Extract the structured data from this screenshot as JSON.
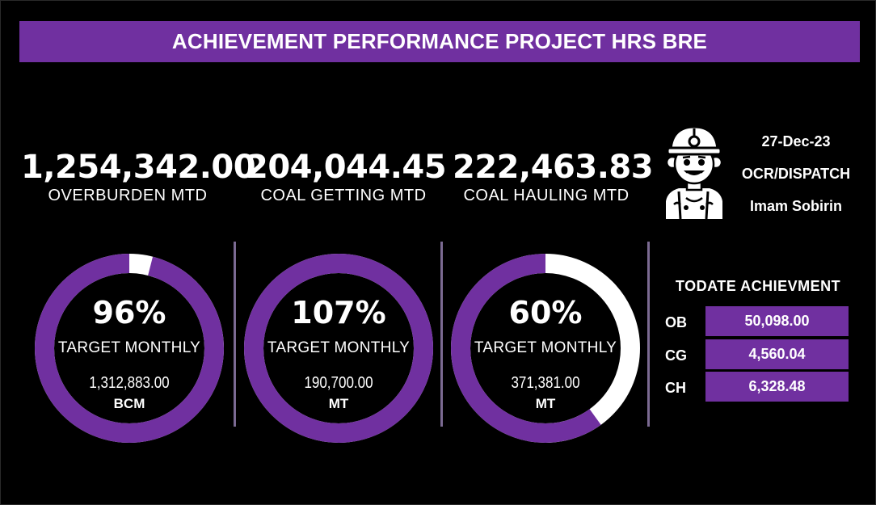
{
  "title": "ACHIEVEMENT PERFORMANCE PROJECT HRS BRE",
  "kpis": [
    {
      "value": "1,254,342.00",
      "label": "OVERBURDEN MTD"
    },
    {
      "value": "204,044.45",
      "label": "COAL GETTING MTD"
    },
    {
      "value": "222,463.83",
      "label": "COAL HAULING MTD"
    }
  ],
  "gauges": [
    {
      "percent_text": "96%",
      "fraction": 0.96,
      "sub_label": "TARGET MONTHLY",
      "target": "1,312,883.00",
      "unit": "BCM"
    },
    {
      "percent_text": "107%",
      "fraction": 1.0,
      "sub_label": "TARGET MONTHLY",
      "target": "190,700.00",
      "unit": "MT"
    },
    {
      "percent_text": "60%",
      "fraction": 0.6,
      "sub_label": "TARGET MONTHLY",
      "target": "371,381.00",
      "unit": "MT"
    }
  ],
  "info": {
    "date": "27-Dec-23",
    "role": "OCR/DISPATCH",
    "name": "Imam Sobirin",
    "icon": "miner-icon"
  },
  "todate": {
    "heading": "TODATE ACHIEVMENT",
    "rows": [
      {
        "label": "OB",
        "value": "50,098.00"
      },
      {
        "label": "CG",
        "value": "4,560.04"
      },
      {
        "label": "CH",
        "value": "6,328.48"
      }
    ]
  },
  "colors": {
    "accent": "#7030a0",
    "track": "#ffffff",
    "background": "#000000"
  }
}
